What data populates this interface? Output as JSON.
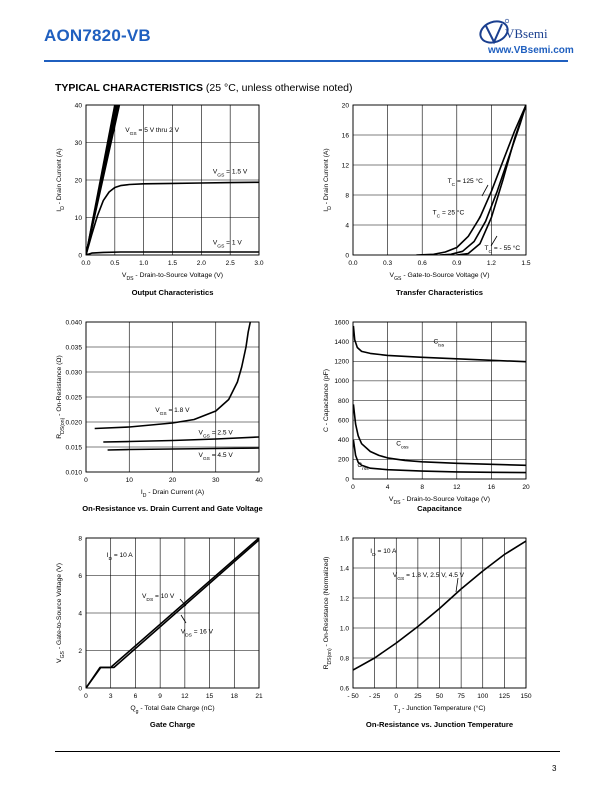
{
  "header": {
    "part_number": "AON7820-VB",
    "brand": "VBsemi",
    "website": "www.VBsemi.com",
    "section_title": "TYPICAL CHARACTERISTICS",
    "section_note": "(25 °C, unless otherwise noted)"
  },
  "footer": {
    "page_number": "3"
  },
  "colors": {
    "accent": "#1f5fbf",
    "curve": "#000000",
    "grid": "#000000"
  },
  "chart_data": [
    {
      "type": "line",
      "title": "Output Characteristics",
      "xlabel": "V<sub>DS</sub> - Drain-to-Source Voltage (V)",
      "ylabel": "I<sub>D</sub> - Drain Current (A)",
      "xlim": [
        0,
        3.0
      ],
      "ylim": [
        0,
        40
      ],
      "xticks": [
        "0.0",
        "0.5",
        "1.0",
        "1.5",
        "2.0",
        "2.5",
        "3.0"
      ],
      "yticks": [
        "0",
        "10",
        "20",
        "30",
        "40"
      ],
      "grid": true,
      "series": [
        {
          "name": "V<sub>GS</sub> = 5 V thru 2 V",
          "x": [
            0,
            0.25,
            0.5
          ],
          "y": [
            0,
            20,
            40
          ]
        },
        {
          "name": "",
          "x": [
            0,
            0.26,
            0.52
          ],
          "y": [
            0,
            20,
            40
          ]
        },
        {
          "name": "",
          "x": [
            0,
            0.27,
            0.54
          ],
          "y": [
            0,
            20,
            40
          ]
        },
        {
          "name": "",
          "x": [
            0,
            0.28,
            0.56
          ],
          "y": [
            0,
            20,
            40
          ]
        },
        {
          "name": "",
          "x": [
            0,
            0.29,
            0.58
          ],
          "y": [
            0,
            20,
            40
          ]
        },
        {
          "name": "V<sub>GS</sub> = 1.5 V",
          "x": [
            0,
            0.1,
            0.2,
            0.3,
            0.4,
            0.5,
            0.6,
            0.75,
            1.0,
            1.5,
            2.0,
            2.5,
            3.0
          ],
          "y": [
            0,
            5.5,
            10.5,
            14.5,
            16.8,
            18.0,
            18.5,
            18.8,
            19.0,
            19.1,
            19.2,
            19.3,
            19.4
          ]
        },
        {
          "name": "V<sub>GS</sub> = 1 V",
          "x": [
            0,
            0.1,
            0.3,
            0.6,
            1.0,
            2.0,
            3.0
          ],
          "y": [
            0,
            0.5,
            0.7,
            0.8,
            0.8,
            0.8,
            0.8
          ]
        }
      ],
      "annotations": [
        {
          "text": "V<sub>GS</sub> = 5 V thru 2 V",
          "x": 0.68,
          "y": 32.8
        },
        {
          "text": "V<sub>GS</sub> = 1.5 V",
          "x": 2.2,
          "y": 21.8
        },
        {
          "text": "V<sub>GS</sub> = 1 V",
          "x": 2.2,
          "y": 2.8
        }
      ]
    },
    {
      "type": "line",
      "title": "Transfer Characteristics",
      "xlabel": "V<sub>GS</sub> - Gate-to-Source Voltage (V)",
      "ylabel": "I<sub>D</sub> - Drain Current (A)",
      "xlim": [
        0,
        1.5
      ],
      "ylim": [
        0,
        20
      ],
      "xticks": [
        "0.0",
        "0.3",
        "0.6",
        "0.9",
        "1.2",
        "1.5"
      ],
      "yticks": [
        "0",
        "4",
        "8",
        "12",
        "16",
        "20"
      ],
      "grid": true,
      "series": [
        {
          "name": "T<sub>C</sub> = 125 °C",
          "x": [
            0.55,
            0.7,
            0.8,
            0.9,
            1.0,
            1.1,
            1.2,
            1.3,
            1.4,
            1.5
          ],
          "y": [
            0,
            0.1,
            0.4,
            1.0,
            2.5,
            5.0,
            8.5,
            12.5,
            16.5,
            20.0
          ]
        },
        {
          "name": "T<sub>C</sub> = 25 °C",
          "x": [
            0.75,
            0.85,
            0.95,
            1.05,
            1.15,
            1.25,
            1.35,
            1.45,
            1.5
          ],
          "y": [
            0,
            0.1,
            0.5,
            1.8,
            4.5,
            8.5,
            13.0,
            17.5,
            20.0
          ]
        },
        {
          "name": "T<sub>C</sub> = - 55 °C",
          "x": [
            0.9,
            1.0,
            1.1,
            1.2,
            1.3,
            1.4,
            1.5
          ],
          "y": [
            0,
            0.2,
            1.5,
            5.0,
            10.0,
            15.5,
            20.0
          ]
        }
      ],
      "annotations": [
        {
          "text": "T<sub>C</sub> = 125 °C",
          "x": 0.82,
          "y": 9.6
        },
        {
          "text": "T<sub>C</sub> = 25 °C",
          "x": 0.69,
          "y": 5.4
        },
        {
          "text": "T<sub>C</sub> = - 55 °C",
          "x": 1.14,
          "y": 0.65
        }
      ]
    },
    {
      "type": "line",
      "title": "On-Resistance vs. Drain Current and Gate Voltage",
      "xlabel": "I<sub>D</sub> - Drain Current (A)",
      "ylabel": "R<sub>DS(on)</sub> - On-Resistance (Ω)",
      "xlim": [
        0,
        40
      ],
      "ylim": [
        0.01,
        0.04
      ],
      "xticks": [
        "0",
        "10",
        "20",
        "30",
        "40"
      ],
      "yticks": [
        "0.010",
        "0.015",
        "0.020",
        "0.025",
        "0.030",
        "0.035",
        "0.040"
      ],
      "grid": true,
      "series": [
        {
          "name": "V<sub>GS</sub> = 1.8 V",
          "x": [
            2,
            10,
            20,
            25,
            30,
            33,
            35,
            36,
            37,
            37.5,
            38
          ],
          "y": [
            0.0187,
            0.019,
            0.0198,
            0.0205,
            0.0222,
            0.0245,
            0.028,
            0.031,
            0.035,
            0.038,
            0.04
          ]
        },
        {
          "name": "V<sub>GS</sub> = 2.5 V",
          "x": [
            4,
            10,
            20,
            30,
            40
          ],
          "y": [
            0.016,
            0.0161,
            0.0163,
            0.0166,
            0.017
          ]
        },
        {
          "name": "V<sub>GS</sub> = 4.5 V",
          "x": [
            5,
            10,
            20,
            30,
            40
          ],
          "y": [
            0.0144,
            0.0145,
            0.0146,
            0.0147,
            0.0148
          ]
        }
      ],
      "annotations": [
        {
          "text": "V<sub>GS</sub> = 1.8 V",
          "x": 16,
          "y": 0.022
        },
        {
          "text": "V<sub>GS</sub> = 2.5 V",
          "x": 26,
          "y": 0.0175
        },
        {
          "text": "V<sub>GS</sub> = 4.5 V",
          "x": 26,
          "y": 0.013
        }
      ]
    },
    {
      "type": "line",
      "title": "Capacitance",
      "xlabel": "V<sub>DS</sub> - Drain-to-Source Voltage (V)",
      "ylabel": "C - Capacitance (pF)",
      "xlim": [
        0,
        20
      ],
      "ylim": [
        0,
        1600
      ],
      "xticks": [
        "0",
        "4",
        "8",
        "12",
        "16",
        "20"
      ],
      "yticks": [
        "0",
        "200",
        "400",
        "600",
        "800",
        "1000",
        "1200",
        "1400",
        "1600"
      ],
      "grid": true,
      "series": [
        {
          "name": "C<sub>iss</sub>",
          "x": [
            0.05,
            0.2,
            0.5,
            1,
            2,
            4,
            8,
            12,
            16,
            20
          ],
          "y": [
            1560,
            1420,
            1340,
            1300,
            1280,
            1260,
            1240,
            1225,
            1210,
            1195
          ]
        },
        {
          "name": "C<sub>oss</sub>",
          "x": [
            0.05,
            0.3,
            0.6,
            1,
            2,
            3,
            4,
            6,
            8,
            12,
            16,
            20
          ],
          "y": [
            760,
            560,
            440,
            360,
            280,
            240,
            215,
            190,
            175,
            160,
            150,
            140
          ]
        },
        {
          "name": "C<sub>rss</sub>",
          "x": [
            0.05,
            0.3,
            0.6,
            1,
            2,
            4,
            8,
            12,
            16,
            20
          ],
          "y": [
            400,
            240,
            170,
            140,
            110,
            95,
            80,
            72,
            68,
            65
          ]
        }
      ],
      "annotations": [
        {
          "text": "C<sub>iss</sub>",
          "x": 9.3,
          "y": 1380
        },
        {
          "text": "C<sub>oss</sub>",
          "x": 5.0,
          "y": 340
        },
        {
          "text": "C<sub>rss</sub>",
          "x": 0.5,
          "y": 120
        }
      ]
    },
    {
      "type": "line",
      "title": "Gate Charge",
      "xlabel": "Q<sub>g</sub> - Total Gate Charge (nC)",
      "ylabel": "V<sub>GS</sub> - Gate-to-Source Voltage (V)",
      "xlim": [
        0,
        21
      ],
      "ylim": [
        0,
        8
      ],
      "xticks": [
        "0",
        "3",
        "6",
        "9",
        "12",
        "15",
        "18",
        "21"
      ],
      "yticks": [
        "0",
        "2",
        "4",
        "6",
        "8"
      ],
      "grid": true,
      "series": [
        {
          "name": "V<sub>DS</sub> = 10 V",
          "x": [
            0,
            1.7,
            3.0,
            21
          ],
          "y": [
            0,
            1.1,
            1.1,
            8.0
          ]
        },
        {
          "name": "V<sub>DS</sub> = 16 V",
          "x": [
            0,
            1.8,
            3.4,
            21
          ],
          "y": [
            0,
            1.1,
            1.1,
            7.9
          ]
        }
      ],
      "annotations": [
        {
          "text": "I<sub>D</sub> = 10 A",
          "x": 2.5,
          "y": 7.0
        },
        {
          "text": "V<sub>DS</sub> = 10 V",
          "x": 6.8,
          "y": 4.8
        },
        {
          "text": "V<sub>DS</sub> = 16 V",
          "x": 11.5,
          "y": 2.9
        }
      ]
    },
    {
      "type": "line",
      "title": "On-Resistance vs. Junction Temperature",
      "xlabel": "T<sub>J</sub> - Junction Temperature (°C)",
      "ylabel": "R<sub>DS(on)</sub> - On-Resistance (Normalized)",
      "xlim": [
        -50,
        150
      ],
      "ylim": [
        0.6,
        1.6
      ],
      "xticks": [
        "- 50",
        "- 25",
        "0",
        "25",
        "50",
        "75",
        "100",
        "125",
        "150"
      ],
      "yticks": [
        "0.6",
        "0.8",
        "1.0",
        "1.2",
        "1.4",
        "1.6"
      ],
      "grid": true,
      "series": [
        {
          "name": "V<sub>GS</sub> = 1.8 V, 2.5 V, 4.5 V",
          "x": [
            -50,
            -25,
            0,
            25,
            50,
            75,
            100,
            125,
            150
          ],
          "y": [
            0.72,
            0.8,
            0.9,
            1.01,
            1.13,
            1.26,
            1.38,
            1.49,
            1.58
          ]
        }
      ],
      "annotations": [
        {
          "text": "I<sub>D</sub> = 10 A",
          "x": -30,
          "y": 1.5
        },
        {
          "text": "V<sub>GS</sub> = 1.8 V, 2.5 V, 4.5 V",
          "x": -4,
          "y": 1.34
        }
      ]
    }
  ]
}
